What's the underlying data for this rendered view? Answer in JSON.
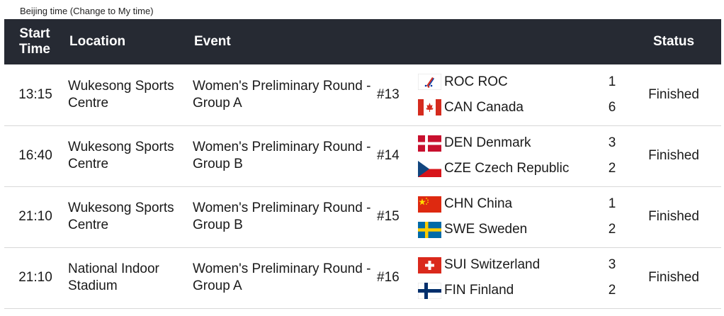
{
  "timezone": {
    "prefix": "Beijing time (",
    "link": "Change to My time",
    "suffix": ")"
  },
  "headers": {
    "start_time_line1": "Start",
    "start_time_line2": "Time",
    "location": "Location",
    "event": "Event",
    "status": "Status"
  },
  "rows": [
    {
      "time": "13:15",
      "location": "Wukesong Sports Centre",
      "event": "Women's Preliminary Round - Group A",
      "number": "#13",
      "team1": {
        "name": "ROC ROC",
        "score": "1",
        "flag": "roc-flag-icon"
      },
      "team2": {
        "name": "CAN Canada",
        "score": "6",
        "flag": "canada-flag-icon"
      },
      "status": "Finished"
    },
    {
      "time": "16:40",
      "location": "Wukesong Sports Centre",
      "event": "Women's Preliminary Round - Group B",
      "number": "#14",
      "team1": {
        "name": "DEN Denmark",
        "score": "3",
        "flag": "denmark-flag-icon"
      },
      "team2": {
        "name": "CZE Czech Republic",
        "score": "2",
        "flag": "czech-flag-icon"
      },
      "status": "Finished"
    },
    {
      "time": "21:10",
      "location": "Wukesong Sports Centre",
      "event": "Women's Preliminary Round - Group B",
      "number": "#15",
      "team1": {
        "name": "CHN China",
        "score": "1",
        "flag": "china-flag-icon"
      },
      "team2": {
        "name": "SWE Sweden",
        "score": "2",
        "flag": "sweden-flag-icon"
      },
      "status": "Finished"
    },
    {
      "time": "21:10",
      "location": "National Indoor Stadium",
      "event": "Women's Preliminary Round - Group A",
      "number": "#16",
      "team1": {
        "name": "SUI Switzerland",
        "score": "3",
        "flag": "switzerland-flag-icon"
      },
      "team2": {
        "name": "FIN Finland",
        "score": "2",
        "flag": "finland-flag-icon"
      },
      "status": "Finished"
    }
  ],
  "colors": {
    "header_bg": "#262a33",
    "header_text": "#ffffff",
    "row_divider": "#d8d8d8"
  }
}
